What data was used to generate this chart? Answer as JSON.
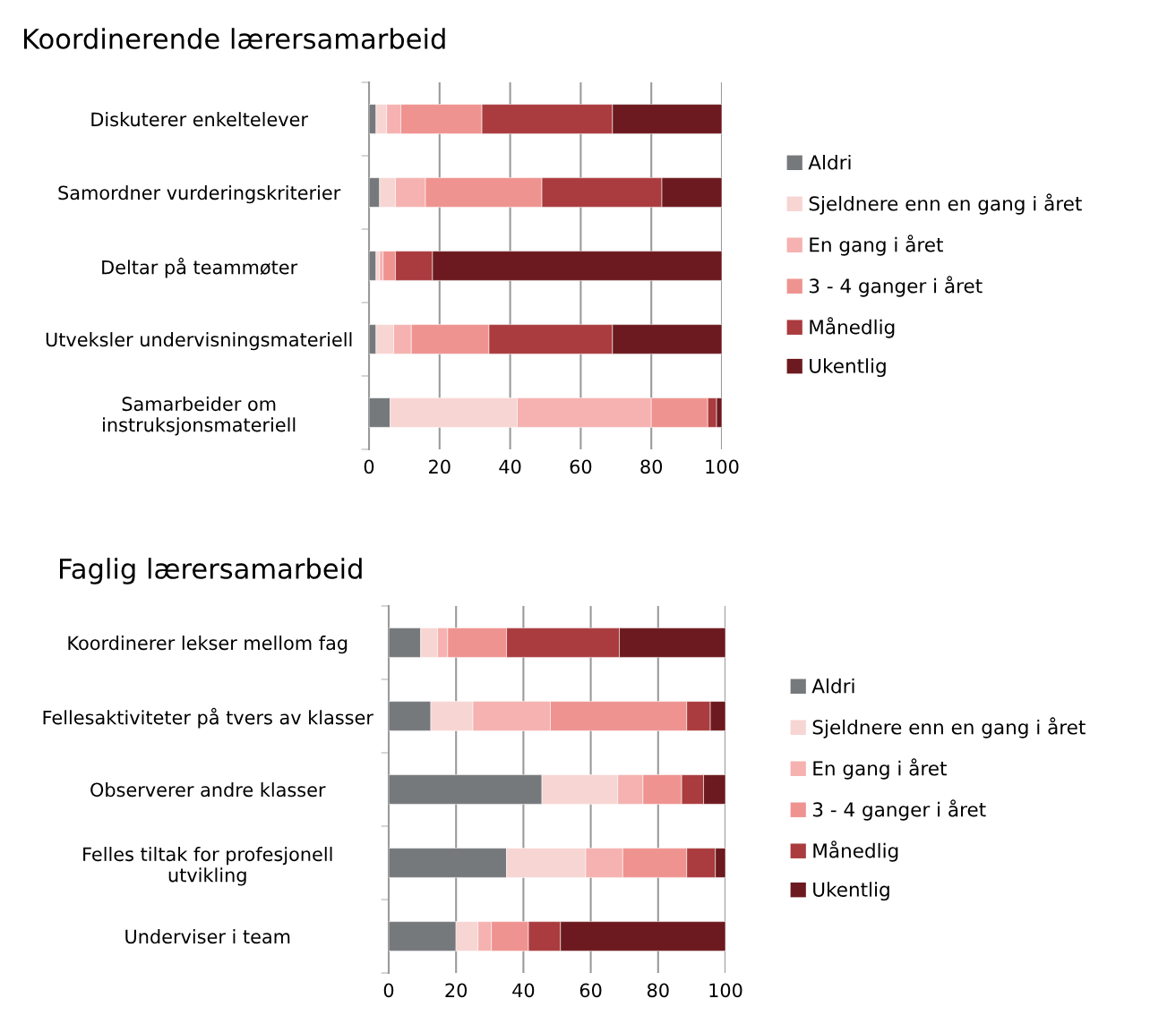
{
  "chart_data": [
    {
      "type": "bar",
      "title": "Koordinerende lærersamarbeid",
      "orientation": "horizontal",
      "stacked": true,
      "grid": "x",
      "legend": "right",
      "categories": [
        "Diskuterer enkeltelever",
        "Samordner vurderingskriterier",
        "Deltar på teammøter",
        "Utveksler undervisningsmateriell",
        "Samarbeider om\ninstruksjonsmateriell"
      ],
      "xlim": [
        0,
        100
      ],
      "xticks": [
        0,
        20,
        40,
        60,
        80,
        100
      ],
      "series": [
        {
          "name": "Aldri",
          "color": "#76797c",
          "values": [
            2,
            3,
            2,
            2,
            6
          ]
        },
        {
          "name": "Sjeldnere enn en gang i året",
          "color": "#f7d5d3",
          "values": [
            3,
            4.5,
            1,
            5,
            36
          ]
        },
        {
          "name": "En gang i året",
          "color": "#f5b2b0",
          "values": [
            4,
            8.5,
            1,
            5,
            38
          ]
        },
        {
          "name": "3 - 4 ganger i året",
          "color": "#ef9390",
          "values": [
            23,
            33,
            3.5,
            22,
            16
          ]
        },
        {
          "name": "Månedlig",
          "color": "#aa3b3e",
          "values": [
            37,
            34,
            10.5,
            35,
            2.5
          ]
        },
        {
          "name": "Ukentlig",
          "color": "#6c1a1f",
          "values": [
            31,
            17,
            82,
            31,
            1.5
          ]
        }
      ]
    },
    {
      "type": "bar",
      "title": "Faglig lærersamarbeid",
      "orientation": "horizontal",
      "stacked": true,
      "grid": "x",
      "legend": "right",
      "categories": [
        "Koordinerer lekser mellom fag",
        "Fellesaktiviteter på tvers av klasser",
        "Observerer andre klasser",
        "Felles tiltak for profesjonell\nutvikling",
        "Underviser i team"
      ],
      "xlim": [
        0,
        100
      ],
      "xticks": [
        0,
        20,
        40,
        60,
        80,
        100
      ],
      "series": [
        {
          "name": "Aldri",
          "color": "#76797c",
          "values": [
            9.5,
            12.5,
            45.5,
            35,
            20
          ]
        },
        {
          "name": "Sjeldnere enn en gang i året",
          "color": "#f7d5d3",
          "values": [
            5,
            12.5,
            22.5,
            23.5,
            6.5
          ]
        },
        {
          "name": "En gang i året",
          "color": "#f5b2b0",
          "values": [
            3,
            23,
            7.5,
            11,
            4
          ]
        },
        {
          "name": "3 - 4 ganger i året",
          "color": "#ef9390",
          "values": [
            17.5,
            40.5,
            11.5,
            19,
            11
          ]
        },
        {
          "name": "Månedlig",
          "color": "#aa3b3e",
          "values": [
            33.5,
            7,
            6.5,
            8.5,
            9.5
          ]
        },
        {
          "name": "Ukentlig",
          "color": "#6c1a1f",
          "values": [
            31.5,
            4.5,
            6.5,
            3,
            49
          ]
        }
      ]
    }
  ]
}
